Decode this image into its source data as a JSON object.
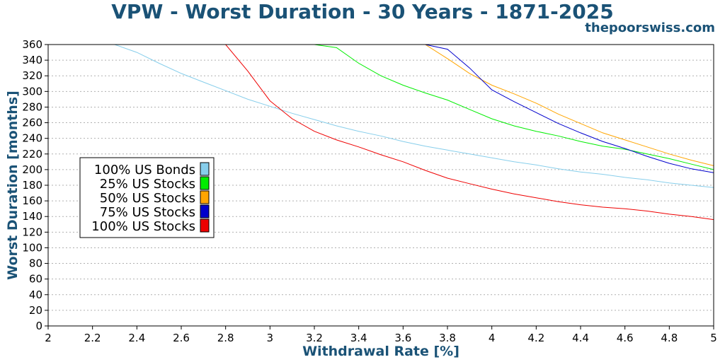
{
  "header": {
    "title": "VPW - Worst Duration - 30 Years - 1871-2025",
    "watermark": "thepoorswiss.com"
  },
  "chart_data": {
    "type": "line",
    "title": "VPW - Worst Duration - 30 Years - 1871-2025",
    "xlabel": "Withdrawal Rate [%]",
    "ylabel": "Worst Duration [months]",
    "xlim": [
      2,
      5
    ],
    "ylim": [
      0,
      360
    ],
    "xticks": [
      2,
      2.2,
      2.4,
      2.6,
      2.8,
      3,
      3.2,
      3.4,
      3.6,
      3.8,
      4,
      4.2,
      4.4,
      4.6,
      4.8,
      5
    ],
    "xtick_labels": [
      "2",
      "2.2",
      "2.4",
      "2.6",
      "2.8",
      "3",
      "3.2",
      "3.4",
      "3.6",
      "3.8",
      "4",
      "4.2",
      "4.4",
      "4.6",
      "4.8",
      "5"
    ],
    "yticks": [
      0,
      20,
      40,
      60,
      80,
      100,
      120,
      140,
      160,
      180,
      200,
      220,
      240,
      260,
      280,
      300,
      320,
      340,
      360
    ],
    "ytick_labels": [
      "0",
      "20",
      "40",
      "60",
      "80",
      "100",
      "120",
      "140",
      "160",
      "180",
      "200",
      "220",
      "240",
      "260",
      "280",
      "300",
      "320",
      "340",
      "360"
    ],
    "grid": true,
    "legend_position": "center-left",
    "x": [
      2.0,
      2.1,
      2.2,
      2.3,
      2.4,
      2.5,
      2.6,
      2.7,
      2.8,
      2.9,
      3.0,
      3.1,
      3.2,
      3.3,
      3.4,
      3.5,
      3.6,
      3.7,
      3.8,
      3.9,
      4.0,
      4.1,
      4.2,
      4.3,
      4.4,
      4.5,
      4.6,
      4.7,
      4.8,
      4.9,
      5.0
    ],
    "series": [
      {
        "name": "100% US Bonds",
        "color": "#87ceeb",
        "values": [
          360,
          360,
          360,
          360,
          350,
          336,
          323,
          312,
          301,
          290,
          281,
          272,
          264,
          256,
          249,
          243,
          236,
          230,
          225,
          220,
          215,
          210,
          206,
          201,
          197,
          194,
          190,
          187,
          183,
          180,
          177
        ]
      },
      {
        "name": "25% US Stocks",
        "color": "#00ee00",
        "values": [
          360,
          360,
          360,
          360,
          360,
          360,
          360,
          360,
          360,
          360,
          360,
          360,
          360,
          356,
          336,
          320,
          308,
          298,
          289,
          277,
          265,
          256,
          249,
          243,
          236,
          230,
          226,
          220,
          214,
          207,
          200
        ]
      },
      {
        "name": "50% US Stocks",
        "color": "#ffa500",
        "values": [
          360,
          360,
          360,
          360,
          360,
          360,
          360,
          360,
          360,
          360,
          360,
          360,
          360,
          360,
          360,
          360,
          360,
          360,
          342,
          323,
          308,
          297,
          285,
          271,
          259,
          247,
          238,
          229,
          220,
          212,
          205
        ]
      },
      {
        "name": "75% US Stocks",
        "color": "#0000cd",
        "values": [
          360,
          360,
          360,
          360,
          360,
          360,
          360,
          360,
          360,
          360,
          360,
          360,
          360,
          360,
          360,
          360,
          360,
          360,
          354,
          330,
          302,
          287,
          273,
          259,
          247,
          236,
          227,
          217,
          208,
          201,
          196
        ]
      },
      {
        "name": "100% US Stocks",
        "color": "#ee0000",
        "values": [
          360,
          360,
          360,
          360,
          360,
          360,
          360,
          360,
          360,
          326,
          288,
          265,
          249,
          238,
          229,
          219,
          210,
          199,
          189,
          182,
          175,
          169,
          164,
          159,
          155,
          152,
          150,
          147,
          143,
          140,
          136
        ]
      }
    ]
  }
}
